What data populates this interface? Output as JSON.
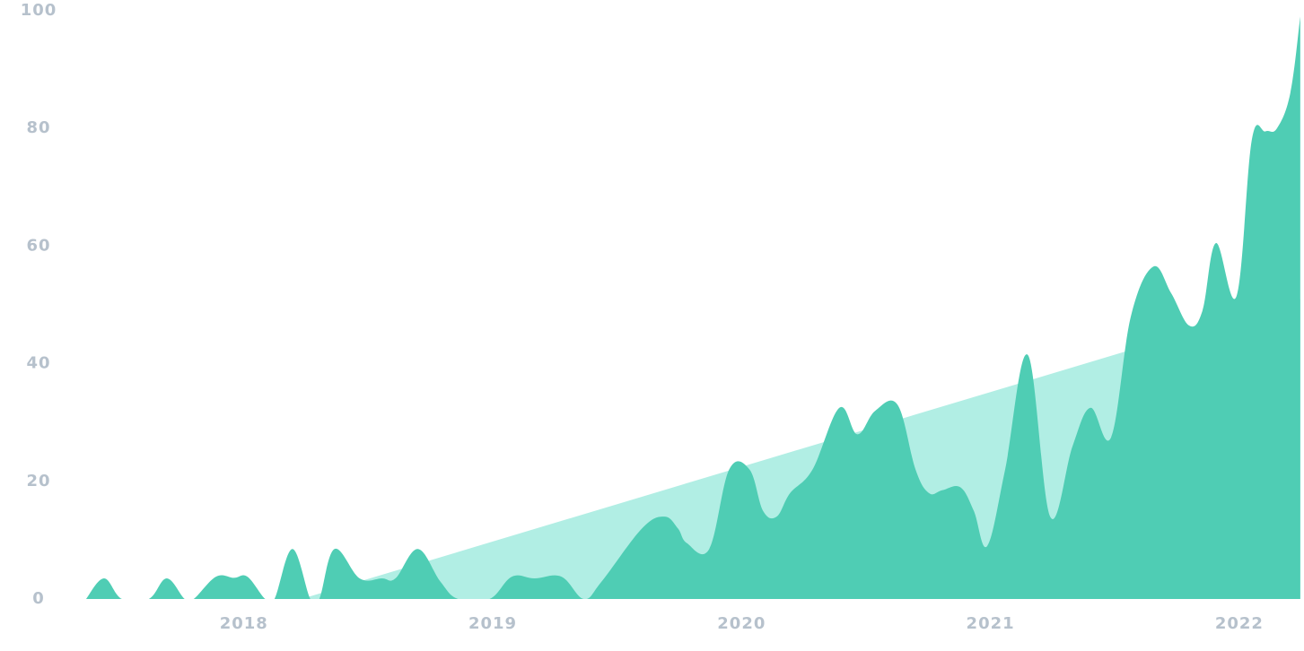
{
  "chart_data": {
    "type": "area",
    "xlim": [
      2017.02,
      2022.26
    ],
    "xticks": [
      2018,
      2019,
      2020,
      2021,
      2022
    ],
    "ylim": [
      0,
      100
    ],
    "yticks": [
      0,
      20,
      40,
      60,
      80,
      100
    ],
    "grid": false,
    "series": [
      {
        "color": "#b1eee4",
        "x": [
          2018.231,
          2022.245
        ],
        "values": [
          0,
          51
        ]
      },
      {
        "color": "#4fcdb4",
        "x": [
          2017.366,
          2017.438,
          2017.51,
          2017.618,
          2017.69,
          2017.762,
          2017.798,
          2017.888,
          2017.96,
          2018.014,
          2018.086,
          2018.123,
          2018.195,
          2018.267,
          2018.303,
          2018.364,
          2018.465,
          2018.555,
          2018.609,
          2018.699,
          2018.789,
          2018.861,
          2018.987,
          2019.077,
          2019.168,
          2019.276,
          2019.366,
          2019.438,
          2019.6,
          2019.69,
          2019.744,
          2019.78,
          2019.87,
          2019.95,
          2020.032,
          2020.086,
          2020.141,
          2020.195,
          2020.285,
          2020.393,
          2020.465,
          2020.537,
          2020.627,
          2020.699,
          2020.753,
          2020.807,
          2020.879,
          2020.933,
          2020.987,
          2021.059,
          2021.15,
          2021.24,
          2021.33,
          2021.402,
          2021.485,
          2021.564,
          2021.654,
          2021.726,
          2021.798,
          2021.852,
          2021.906,
          2021.989,
          2022.05,
          2022.105,
          2022.151,
          2022.205,
          2022.245
        ],
        "values": [
          0,
          3.5,
          0,
          0,
          3.5,
          0,
          0,
          3.8,
          3.6,
          3.8,
          0,
          0,
          8.5,
          0,
          0,
          8.5,
          3.5,
          3.5,
          3.5,
          8.5,
          3,
          0,
          0,
          3.8,
          3.5,
          3.8,
          0,
          3,
          12,
          14,
          12,
          9.5,
          8.5,
          22,
          22,
          15,
          14,
          18,
          22,
          32.5,
          28,
          32,
          33,
          22,
          18,
          18.5,
          19,
          15,
          9,
          22,
          41.5,
          14,
          26,
          32.5,
          27.5,
          48,
          56.5,
          52,
          46.5,
          49,
          60.5,
          51.5,
          78,
          79.5,
          80,
          86,
          99
        ]
      }
    ]
  }
}
